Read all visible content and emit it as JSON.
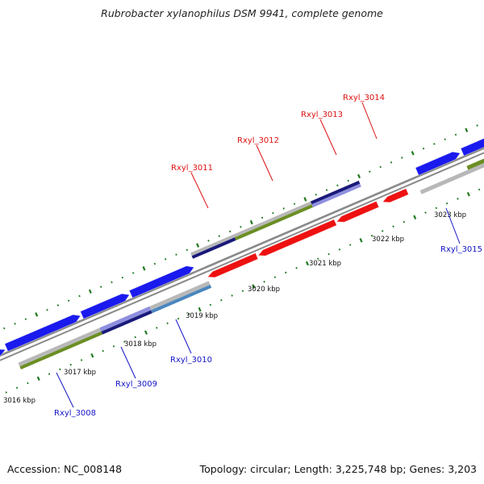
{
  "title": "Rubrobacter xylanophilus DSM 9941, complete genome",
  "footer": {
    "accession": "Accession: NC_008148",
    "topology": "Topology: circular; Length: 3,225,748 bp; Genes: 3,203"
  },
  "colors": {
    "forward_cds": "#1a1aee",
    "reverse_cds": "#ee1111",
    "backbone": "#8a8a8a",
    "tick": "#1f7a1f",
    "label_forward": "#1515c8",
    "label_reverse": "#dd1111",
    "band_grey": "#b8b8b8",
    "band_olive": "#6b8e23",
    "band_navy": "#1a1a7a",
    "band_lavender": "#8f8fe0",
    "band_steel": "#4a86c0"
  },
  "ticks": [
    {
      "kbp": 3016,
      "label": "3016 kbp"
    },
    {
      "kbp": 3017,
      "label": "3017 kbp"
    },
    {
      "kbp": 3018,
      "label": "3018 kbp"
    },
    {
      "kbp": 3019,
      "label": "3019 kbp"
    },
    {
      "kbp": 3020,
      "label": "3020 kbp"
    },
    {
      "kbp": 3021,
      "label": "3021 kbp"
    },
    {
      "kbp": 3022,
      "label": "3022 kbp"
    },
    {
      "kbp": 3023,
      "label": "3023 kbp"
    }
  ],
  "gene_labels": [
    {
      "name": "Rxyl_3008",
      "strand": "forward"
    },
    {
      "name": "Rxyl_3009",
      "strand": "forward"
    },
    {
      "name": "Rxyl_3010",
      "strand": "forward"
    },
    {
      "name": "Rxyl_3011",
      "strand": "reverse"
    },
    {
      "name": "Rxyl_3012",
      "strand": "reverse"
    },
    {
      "name": "Rxyl_3013",
      "strand": "reverse"
    },
    {
      "name": "Rxyl_3014",
      "strand": "reverse"
    },
    {
      "name": "Rxyl_3015",
      "strand": "forward"
    }
  ]
}
